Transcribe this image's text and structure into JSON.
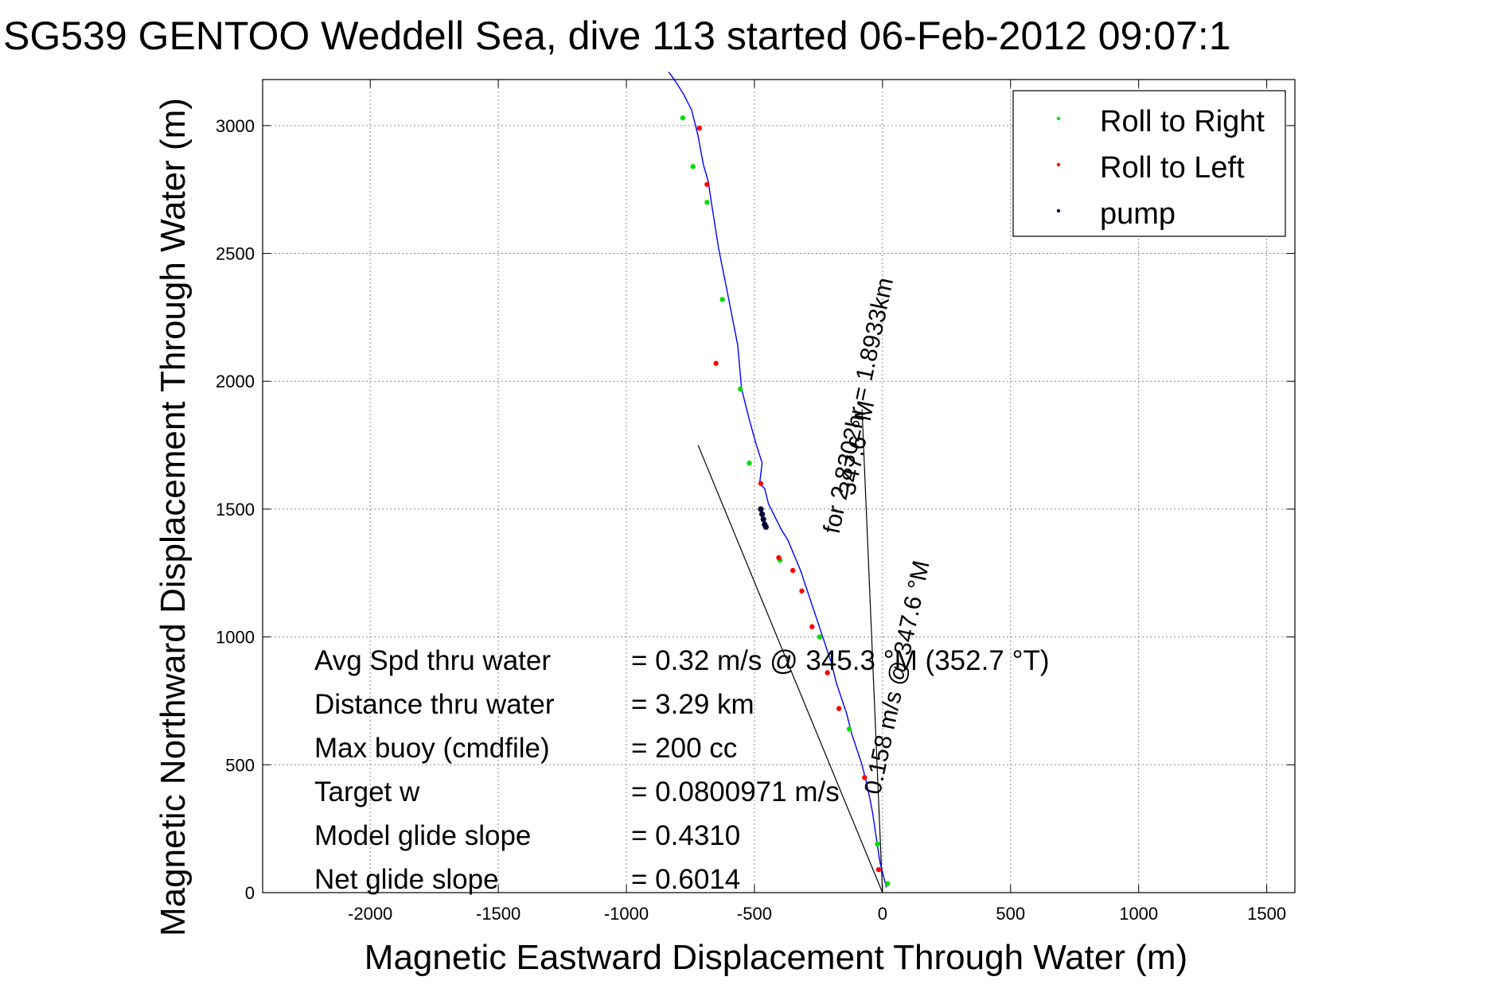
{
  "chart_data": {
    "type": "line",
    "title": "SG539 GENTOO Weddell Sea, dive 113 started 06-Feb-2012 09:07:1",
    "xlabel": "Magnetic Eastward Displacement Through Water (m)",
    "ylabel": "Magnetic Northward Displacement Through Water (m)",
    "xlim": [
      -2420,
      1610
    ],
    "ylim": [
      0,
      3180
    ],
    "xticks": [
      -2000,
      -1500,
      -1000,
      -500,
      0,
      500,
      1000,
      1500
    ],
    "yticks": [
      0,
      500,
      1000,
      1500,
      2000,
      2500,
      3000
    ],
    "grid": true,
    "legend_position": "top-right",
    "colors": {
      "track": "#0000ff",
      "roll_right": "#00dd00",
      "roll_left": "#ff0000",
      "pump": "#000033",
      "heading_line": "#000000",
      "grid": "#888888"
    },
    "legend": [
      {
        "label": "Roll to Right",
        "color": "#00dd00"
      },
      {
        "label": "Roll to Left",
        "color": "#ff0000"
      },
      {
        "label": "pump",
        "color": "#000033"
      }
    ],
    "track": {
      "x": [
        15,
        -10,
        -25,
        -40,
        -60,
        -80,
        -100,
        -120,
        -140,
        -160,
        -180,
        -200,
        -220,
        -240,
        -260,
        -280,
        -300,
        -320,
        -345,
        -370,
        -395,
        -420,
        -445,
        -460,
        -480,
        -470,
        -495,
        -520,
        -550,
        -565,
        -600,
        -640,
        -665,
        -680,
        -700,
        -720,
        -745,
        -775,
        -800,
        -820,
        -835
      ],
      "y": [
        20,
        120,
        220,
        320,
        420,
        500,
        560,
        620,
        700,
        760,
        820,
        900,
        960,
        1020,
        1080,
        1140,
        1200,
        1260,
        1320,
        1380,
        1420,
        1470,
        1520,
        1580,
        1600,
        1680,
        1760,
        1850,
        1970,
        2140,
        2320,
        2520,
        2680,
        2780,
        2850,
        2960,
        3060,
        3120,
        3160,
        3190,
        3210
      ]
    },
    "roll_right": {
      "x": [
        20,
        -20,
        -130,
        -245,
        -400,
        -470,
        -520,
        -555,
        -625,
        -685,
        -740,
        -780
      ],
      "y": [
        35,
        190,
        640,
        1000,
        1300,
        1480,
        1680,
        1970,
        2320,
        2700,
        2840,
        3030
      ]
    },
    "roll_left": {
      "x": [
        -15,
        -70,
        -170,
        -215,
        -275,
        -315,
        -350,
        -405,
        -475,
        -650,
        -685,
        -715
      ],
      "y": [
        90,
        450,
        720,
        860,
        1040,
        1180,
        1260,
        1310,
        1600,
        2070,
        2770,
        2990
      ]
    },
    "pump": {
      "x": [
        -475,
        -470,
        -465,
        -460,
        -455
      ],
      "y": [
        1500,
        1480,
        1460,
        1440,
        1430
      ]
    },
    "heading_lines": [
      {
        "x": [
          0,
          -720
        ],
        "y": [
          0,
          1750
        ]
      },
      {
        "x": [
          0,
          -80
        ],
        "y": [
          0,
          1890
        ]
      }
    ],
    "annotations": [
      {
        "text": "0.158 m/s @ 347.6 °M",
        "x": -10,
        "y": 380,
        "angle": -78
      },
      {
        "text": "for 2.8302hr = 1.8933km",
        "x": -170,
        "y": 1400,
        "angle": -78
      },
      {
        "text": "347.6 °M",
        "x": -110,
        "y": 1550,
        "angle": -78
      }
    ],
    "stats": [
      {
        "label": "Avg Spd thru water",
        "value": "=  0.32 m/s @ 345.3 °M (352.7 °T)"
      },
      {
        "label": "Distance thru water",
        "value": "=  3.29 km"
      },
      {
        "label": "Max buoy (cmdfile)",
        "value": "= 200 cc"
      },
      {
        "label": "Target w",
        "value": "= 0.0800971 m/s"
      },
      {
        "label": "Model glide slope",
        "value": "= 0.4310"
      },
      {
        "label": "Net glide slope",
        "value": "= 0.6014"
      }
    ]
  }
}
